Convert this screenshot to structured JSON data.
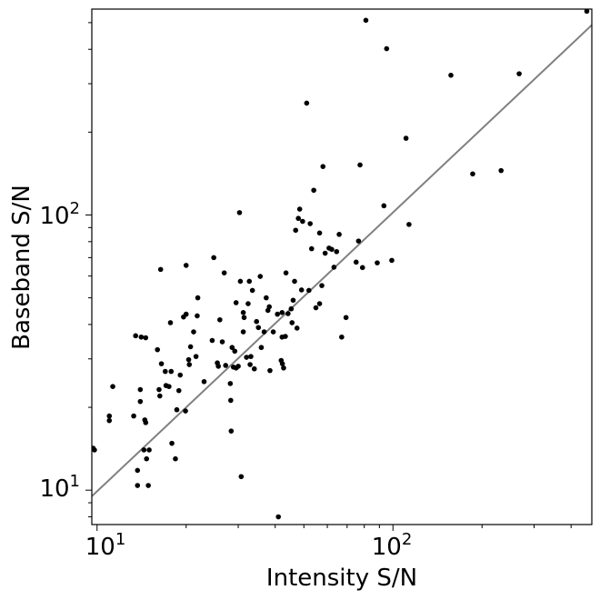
{
  "chart_data": {
    "type": "scatter",
    "title": "",
    "xlabel": "Intensity S/N",
    "ylabel": "Baseband S/N",
    "xscale": "log",
    "yscale": "log",
    "xlim": [
      9.6,
      470
    ],
    "ylim": [
      7.5,
      560
    ],
    "grid": false,
    "legend": "none",
    "x_ticks": [
      {
        "value": 10,
        "base": "10",
        "exp": "1"
      },
      {
        "value": 100,
        "base": "10",
        "exp": "2"
      }
    ],
    "y_ticks": [
      {
        "value": 10,
        "base": "10",
        "exp": "1"
      },
      {
        "value": 100,
        "base": "10",
        "exp": "2"
      }
    ],
    "marker_color": "#000000",
    "line_color": "#808080",
    "fit_line": {
      "x": [
        9.6,
        470
      ],
      "y": [
        9.5,
        490
      ]
    },
    "series": [
      {
        "points": [
          [
            9.7,
            14.2
          ],
          [
            9.8,
            14.0
          ],
          [
            11,
            18.6
          ],
          [
            11,
            17.9
          ],
          [
            11.3,
            23.8
          ],
          [
            13.3,
            18.6
          ],
          [
            13.5,
            36.4
          ],
          [
            13.7,
            11.8
          ],
          [
            13.7,
            10.4
          ],
          [
            14,
            23.2
          ],
          [
            14,
            21.0
          ],
          [
            14.1,
            36.0
          ],
          [
            14.4,
            14.0
          ],
          [
            14.5,
            18.0
          ],
          [
            14.6,
            17.6
          ],
          [
            14.6,
            35.8
          ],
          [
            14.7,
            13.0
          ],
          [
            14.9,
            10.4
          ],
          [
            15,
            14.0
          ],
          [
            16,
            32.4
          ],
          [
            16.2,
            23.2
          ],
          [
            16.3,
            22.0
          ],
          [
            16.4,
            63.4
          ],
          [
            16.5,
            28.8
          ],
          [
            17,
            27.0
          ],
          [
            17.1,
            24.0
          ],
          [
            17.5,
            23.8
          ],
          [
            17.7,
            40.6
          ],
          [
            17.8,
            27.0
          ],
          [
            17.9,
            14.8
          ],
          [
            18.4,
            13.0
          ],
          [
            18.6,
            19.6
          ],
          [
            18.9,
            23.0
          ],
          [
            19.1,
            26.2
          ],
          [
            19.6,
            42.6
          ],
          [
            19.9,
            19.4
          ],
          [
            20,
            65.6
          ],
          [
            20,
            43.6
          ],
          [
            20.4,
            29.8
          ],
          [
            20.5,
            28.6
          ],
          [
            20.7,
            33.2
          ],
          [
            21.2,
            37.6
          ],
          [
            21.6,
            30.6
          ],
          [
            21.8,
            43.0
          ],
          [
            21.9,
            50.0
          ],
          [
            23,
            24.8
          ],
          [
            24.5,
            35.0
          ],
          [
            24.8,
            70.0
          ],
          [
            25.5,
            29.0
          ],
          [
            25.7,
            28.2
          ],
          [
            26,
            41.6
          ],
          [
            26.5,
            34.6
          ],
          [
            26.9,
            61.6
          ],
          [
            27.2,
            28.4
          ],
          [
            28.2,
            24.4
          ],
          [
            28.3,
            21.2
          ],
          [
            28.4,
            16.4
          ],
          [
            28.6,
            33.0
          ],
          [
            28.9,
            28.0
          ],
          [
            29.2,
            32.0
          ],
          [
            29.5,
            27.8
          ],
          [
            29.5,
            48.0
          ],
          [
            30,
            28.2
          ],
          [
            30.3,
            102.0
          ],
          [
            30.5,
            57.4
          ],
          [
            30.7,
            11.2
          ],
          [
            31.2,
            37.6
          ],
          [
            31.2,
            44.2
          ],
          [
            31.4,
            42.4
          ],
          [
            32,
            30.4
          ],
          [
            32.4,
            47.6
          ],
          [
            32.7,
            57.4
          ],
          [
            32.9,
            28.6
          ],
          [
            33.1,
            30.6
          ],
          [
            33.5,
            53.2
          ],
          [
            34,
            27.6
          ],
          [
            34.6,
            41.0
          ],
          [
            35.1,
            39.0
          ],
          [
            35.6,
            59.8
          ],
          [
            35.9,
            33.0
          ],
          [
            36.7,
            37.6
          ],
          [
            37.3,
            50.0
          ],
          [
            37.8,
            45.0
          ],
          [
            38.2,
            46.4
          ],
          [
            38.4,
            27.2
          ],
          [
            39.4,
            37.6
          ],
          [
            40.7,
            43.6
          ],
          [
            41,
            8.0
          ],
          [
            42.2,
            36.0
          ],
          [
            41.9,
            29.6
          ],
          [
            42.2,
            44.2
          ],
          [
            42.3,
            28.8
          ],
          [
            42.7,
            27.8
          ],
          [
            43.3,
            36.2
          ],
          [
            43.5,
            61.6
          ],
          [
            44.2,
            43.8
          ],
          [
            45.3,
            45.6
          ],
          [
            45.6,
            40.6
          ],
          [
            46,
            49.0
          ],
          [
            46.5,
            57.4
          ],
          [
            46.9,
            88.0
          ],
          [
            47.4,
            38.8
          ],
          [
            47.9,
            97.2
          ],
          [
            48.4,
            105.0
          ],
          [
            49.1,
            53.4
          ],
          [
            49.5,
            94.8
          ],
          [
            51.1,
            255
          ],
          [
            52,
            53.2
          ],
          [
            52.5,
            93.0
          ],
          [
            53.1,
            75.4
          ],
          [
            54,
            123
          ],
          [
            54.9,
            46.0
          ],
          [
            56.5,
            47.6
          ],
          [
            56.5,
            86.0
          ],
          [
            57.5,
            55.4
          ],
          [
            58,
            150
          ],
          [
            59,
            72.6
          ],
          [
            60.8,
            75.8
          ],
          [
            62.1,
            75.0
          ],
          [
            63.2,
            64.6
          ],
          [
            64.5,
            73.6
          ],
          [
            65.8,
            85.0
          ],
          [
            67.1,
            36.0
          ],
          [
            69.4,
            42.4
          ],
          [
            75.1,
            67.4
          ],
          [
            76.5,
            80.4
          ],
          [
            77.4,
            152
          ],
          [
            78.9,
            64.4
          ],
          [
            81,
            510
          ],
          [
            88.5,
            67.0
          ],
          [
            93.2,
            108
          ],
          [
            95.2,
            402
          ],
          [
            99.1,
            68.4
          ],
          [
            110.7,
            190
          ],
          [
            113.3,
            92.4
          ],
          [
            157,
            322
          ],
          [
            186,
            141
          ],
          [
            232,
            145
          ],
          [
            267,
            326
          ],
          [
            452,
            550
          ]
        ]
      }
    ]
  }
}
